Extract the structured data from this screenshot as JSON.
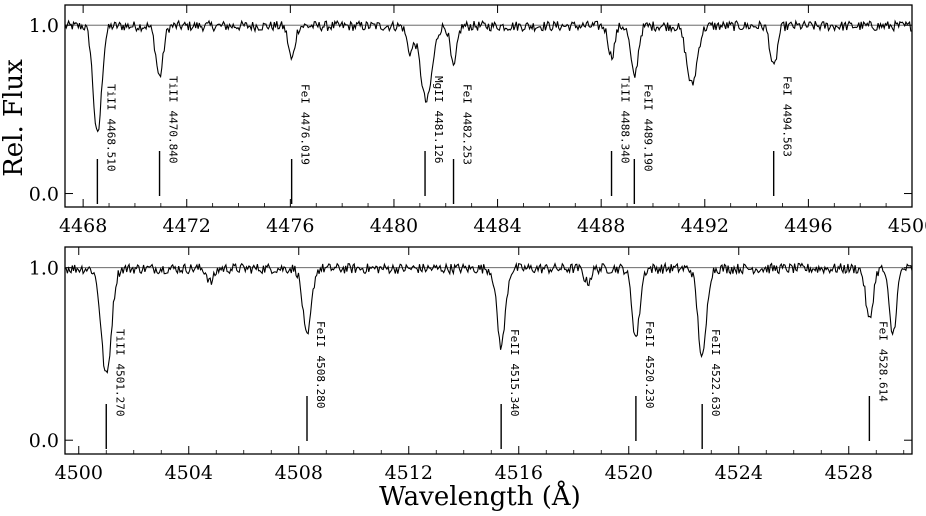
{
  "chart_data": {
    "type": "line",
    "xlabel": "Wavelength (Å)",
    "ylabel": "Rel. Flux",
    "y_ticks": [
      {
        "value": 0.0,
        "label": "0.0"
      },
      {
        "value": 1.0,
        "label": "1.0"
      }
    ],
    "continuum_level": 1.0,
    "grid": false,
    "panels": [
      {
        "xlim": [
          4467.3,
          4500.0
        ],
        "ylim": [
          -0.08,
          1.12
        ],
        "x_ticks": [
          4468,
          4472,
          4476,
          4480,
          4484,
          4488,
          4492,
          4496,
          4500
        ],
        "absorption_lines": [
          {
            "center": 4468.55,
            "depth": 0.65,
            "width": 0.16
          },
          {
            "center": 4470.95,
            "depth": 0.3,
            "width": 0.14
          },
          {
            "center": 4476.05,
            "depth": 0.2,
            "width": 0.12
          },
          {
            "center": 4480.62,
            "depth": 0.15,
            "width": 0.12
          },
          {
            "center": 4481.25,
            "depth": 0.45,
            "width": 0.22
          },
          {
            "center": 4482.3,
            "depth": 0.25,
            "width": 0.12
          },
          {
            "center": 4488.4,
            "depth": 0.18,
            "width": 0.12
          },
          {
            "center": 4489.28,
            "depth": 0.3,
            "width": 0.14
          },
          {
            "center": 4491.5,
            "depth": 0.35,
            "width": 0.2
          },
          {
            "center": 4494.66,
            "depth": 0.25,
            "width": 0.13
          }
        ],
        "labels": [
          {
            "species": "TiII",
            "wavelength": "4468.510",
            "x": 4468.55
          },
          {
            "species": "TiII",
            "wavelength": "4470.840",
            "x": 4470.95
          },
          {
            "species": "FeI",
            "wavelength": "4476.019",
            "x": 4476.05
          },
          {
            "species": "MgII",
            "wavelength": "4481.126",
            "x": 4481.2
          },
          {
            "species": "FeI",
            "wavelength": "4482.253",
            "x": 4482.3
          },
          {
            "species": "TiII",
            "wavelength": "4488.340",
            "x": 4488.4
          },
          {
            "species": "FeII",
            "wavelength": "4489.190",
            "x": 4489.28
          },
          {
            "species": "FeI",
            "wavelength": "4494.563",
            "x": 4494.66
          }
        ]
      },
      {
        "xlim": [
          4499.5,
          4530.3
        ],
        "ylim": [
          -0.08,
          1.12
        ],
        "x_ticks": [
          4500,
          4504,
          4508,
          4512,
          4516,
          4520,
          4524,
          4528
        ],
        "absorption_lines": [
          {
            "center": 4501.0,
            "depth": 0.62,
            "width": 0.18
          },
          {
            "center": 4504.8,
            "depth": 0.08,
            "width": 0.12
          },
          {
            "center": 4508.3,
            "depth": 0.4,
            "width": 0.15
          },
          {
            "center": 4515.36,
            "depth": 0.45,
            "width": 0.15
          },
          {
            "center": 4518.5,
            "depth": 0.08,
            "width": 0.12
          },
          {
            "center": 4520.26,
            "depth": 0.4,
            "width": 0.14
          },
          {
            "center": 4522.67,
            "depth": 0.52,
            "width": 0.15
          },
          {
            "center": 4528.75,
            "depth": 0.3,
            "width": 0.13
          },
          {
            "center": 4529.6,
            "depth": 0.38,
            "width": 0.13
          }
        ],
        "labels": [
          {
            "species": "TiII",
            "wavelength": "4501.270",
            "x": 4501.0
          },
          {
            "species": "FeII",
            "wavelength": "4508.280",
            "x": 4508.3
          },
          {
            "species": "FeII",
            "wavelength": "4515.340",
            "x": 4515.36
          },
          {
            "species": "FeII",
            "wavelength": "4520.230",
            "x": 4520.26
          },
          {
            "species": "FeII",
            "wavelength": "4522.630",
            "x": 4522.67
          },
          {
            "species": "FeI",
            "wavelength": "4528.614",
            "x": 4528.75
          }
        ]
      }
    ]
  }
}
